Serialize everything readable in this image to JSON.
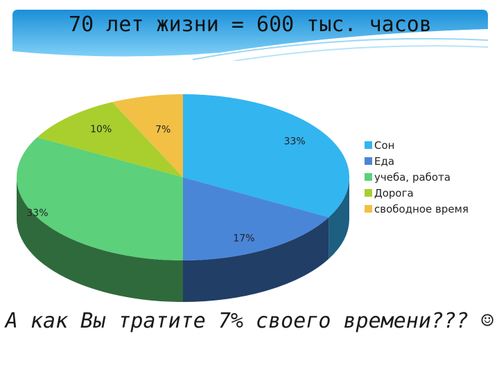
{
  "title": "70 лет жизни = 600 тыс. часов",
  "question": "А как Вы тратите 7% своего времени??? ☺",
  "chart_data": {
    "type": "pie",
    "style": "3d",
    "categories": [
      "Сон",
      "Еда",
      "учеба, работа",
      "Дорога",
      "свободное время"
    ],
    "values": [
      33,
      17,
      33,
      10,
      7
    ],
    "data_labels": [
      "33%",
      "17%",
      "33%",
      "10%",
      "7%"
    ],
    "colors": [
      "#33b5f0",
      "#4a86d8",
      "#5cd07a",
      "#a8cf2e",
      "#f2c045"
    ],
    "side_colors": [
      "#1c5f80",
      "#213e66",
      "#2f6a3c",
      "#55721a",
      "#8a6a20"
    ],
    "legend_position": "right"
  }
}
